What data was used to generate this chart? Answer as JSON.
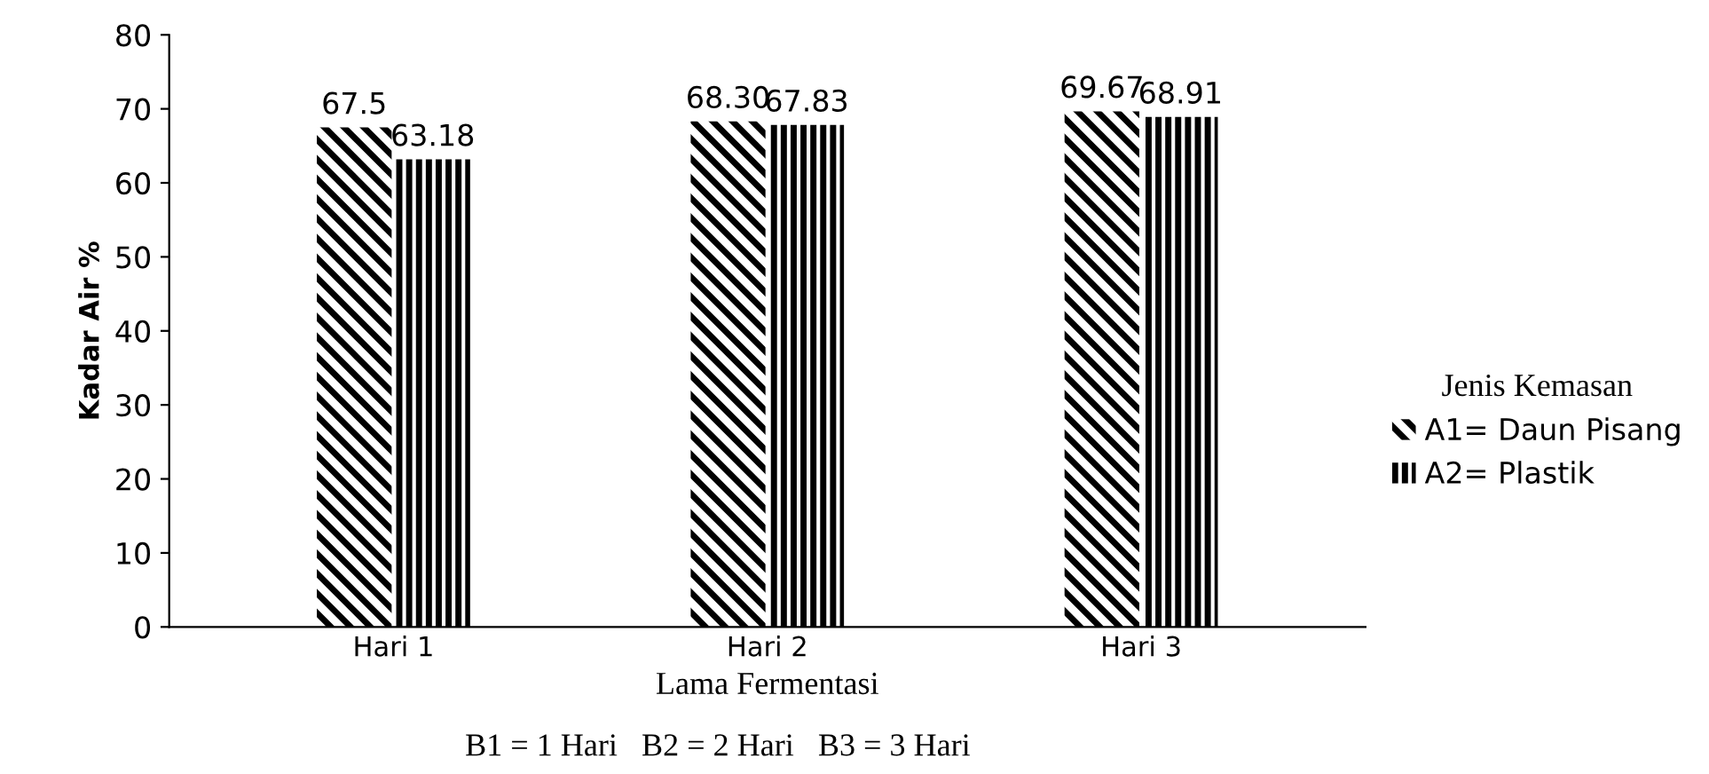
{
  "chart_data": {
    "type": "bar",
    "xlabel": "Lama Fermentasi",
    "ylabel": "Kadar Air %",
    "legend_title": "Jenis Kemasan",
    "categories": [
      "Hari 1",
      "Hari 2",
      "Hari 3"
    ],
    "series": [
      {
        "name": "A1= Daun Pisang",
        "color": "#000000",
        "values": [
          67.5,
          68.3,
          69.67
        ],
        "value_labels": [
          "67.5",
          "68.30",
          "69.67"
        ]
      },
      {
        "name": "A2= Plastik",
        "color": "#000000",
        "values": [
          63.18,
          67.83,
          68.91
        ],
        "value_labels": [
          "63.18",
          "67.83",
          "68.91"
        ]
      }
    ],
    "ylim": [
      0,
      80
    ],
    "yticks": [
      0,
      10,
      20,
      30,
      40,
      50,
      60,
      70,
      80
    ],
    "grid": false,
    "legend": "right",
    "annotations": [
      "B1 = 1 Hari   B2 = 2 Hari   B3 = 3 Hari"
    ]
  }
}
